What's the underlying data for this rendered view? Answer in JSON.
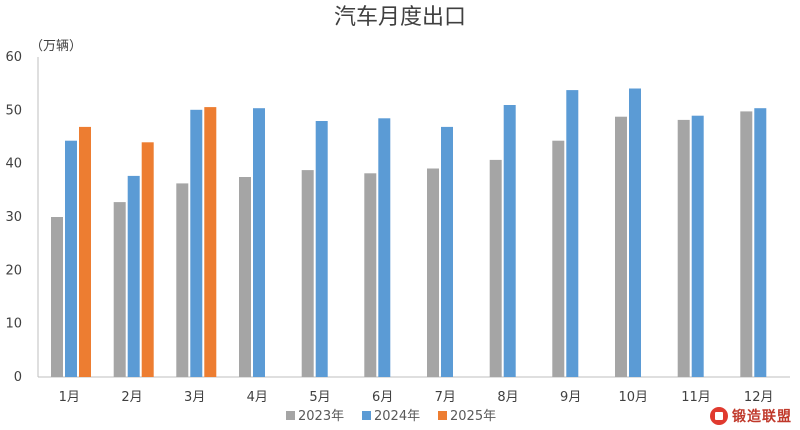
{
  "chart_data": {
    "type": "bar",
    "title": "汽车月度出口",
    "unit_label": "（万辆）",
    "categories": [
      "1月",
      "2月",
      "3月",
      "4月",
      "5月",
      "6月",
      "7月",
      "8月",
      "9月",
      "10月",
      "11月",
      "12月"
    ],
    "series": [
      {
        "name": "2023年",
        "color": "#a5a5a5",
        "values": [
          30.0,
          32.8,
          36.3,
          37.5,
          38.8,
          38.2,
          39.1,
          40.7,
          44.3,
          48.8,
          48.2,
          49.8
        ]
      },
      {
        "name": "2024年",
        "color": "#5b9bd5",
        "values": [
          44.3,
          37.7,
          50.1,
          50.4,
          48.0,
          48.5,
          46.9,
          51.0,
          53.8,
          54.1,
          49.0,
          50.4
        ]
      },
      {
        "name": "2025年",
        "color": "#ed7d31",
        "values": [
          46.9,
          44.0,
          50.6,
          null,
          null,
          null,
          null,
          null,
          null,
          null,
          null,
          null
        ]
      }
    ],
    "ylim": [
      0,
      60
    ],
    "yticks": [
      0,
      10,
      20,
      30,
      40,
      50,
      60
    ],
    "grid": false,
    "legend_position": "bottom"
  },
  "watermark": {
    "text": "锻造联盟"
  }
}
